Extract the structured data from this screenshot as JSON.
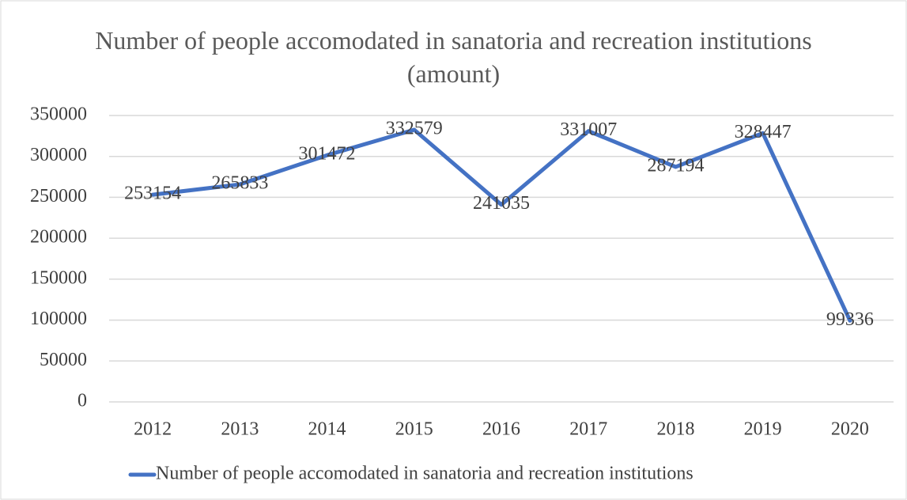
{
  "chart_data": {
    "type": "line",
    "title": "Number of people accomodated in sanatoria and recreation institutions  (amount)",
    "categories": [
      "2012",
      "2013",
      "2014",
      "2015",
      "2016",
      "2017",
      "2018",
      "2019",
      "2020"
    ],
    "series": [
      {
        "name": "Number of people accomodated in sanatoria and recreation institutions",
        "color": "#4472c4",
        "values": [
          253154,
          265833,
          301472,
          332579,
          241035,
          331007,
          287194,
          328447,
          99336
        ]
      }
    ],
    "ylim": [
      0,
      350000
    ],
    "yticks": [
      0,
      50000,
      100000,
      150000,
      200000,
      250000,
      300000,
      350000
    ],
    "grid": true,
    "legend": "bottom"
  }
}
